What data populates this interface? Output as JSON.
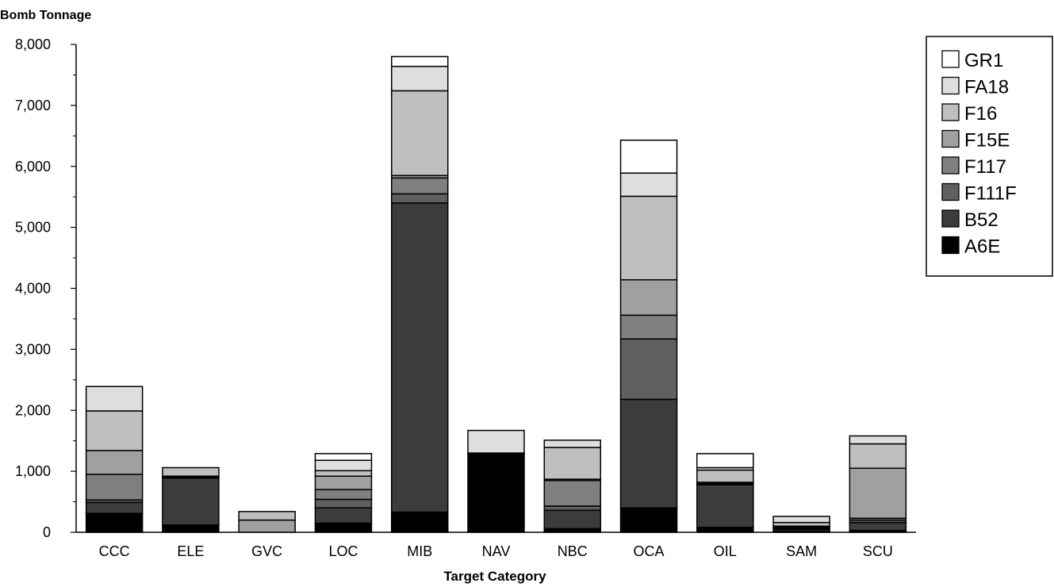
{
  "chart_data": {
    "type": "bar",
    "stacked": true,
    "title": "",
    "ylabel": "Bomb Tonnage",
    "xlabel": "Target Category",
    "ylim": [
      0,
      8000
    ],
    "yticks": [
      0,
      1000,
      2000,
      3000,
      4000,
      5000,
      6000,
      7000,
      8000
    ],
    "ytick_labels": [
      "0",
      "1,000",
      "2,000",
      "3,000",
      "4,000",
      "5,000",
      "6,000",
      "7,000",
      "8,000"
    ],
    "grid": false,
    "legend_position": "top-right",
    "categories": [
      "CCC",
      "ELE",
      "GVC",
      "LOC",
      "MIB",
      "NAV",
      "NBC",
      "OCA",
      "OIL",
      "SAM",
      "SCU"
    ],
    "series": [
      {
        "name": "A6E",
        "color": "#000000",
        "values": [
          310,
          120,
          0,
          150,
          330,
          1300,
          60,
          400,
          80,
          20,
          30
        ]
      },
      {
        "name": "B52",
        "color": "#3c3c3c",
        "values": [
          180,
          770,
          0,
          250,
          5070,
          0,
          300,
          1780,
          700,
          30,
          130
        ]
      },
      {
        "name": "F111F",
        "color": "#5f5f5f",
        "values": [
          40,
          20,
          0,
          140,
          150,
          0,
          70,
          990,
          20,
          10,
          40
        ]
      },
      {
        "name": "F117",
        "color": "#808080",
        "values": [
          420,
          0,
          0,
          160,
          260,
          0,
          420,
          390,
          20,
          20,
          30
        ]
      },
      {
        "name": "F15E",
        "color": "#a0a0a0",
        "values": [
          390,
          10,
          200,
          220,
          40,
          0,
          20,
          580,
          0,
          20,
          820
        ]
      },
      {
        "name": "F16",
        "color": "#bfbfbf",
        "values": [
          650,
          140,
          140,
          90,
          1390,
          0,
          520,
          1370,
          200,
          60,
          400
        ]
      },
      {
        "name": "FA18",
        "color": "#dedede",
        "values": [
          400,
          0,
          0,
          170,
          400,
          370,
          120,
          380,
          40,
          100,
          130
        ]
      },
      {
        "name": "GR1",
        "color": "#ffffff",
        "values": [
          0,
          0,
          0,
          110,
          160,
          0,
          0,
          540,
          230,
          0,
          0
        ]
      }
    ]
  }
}
